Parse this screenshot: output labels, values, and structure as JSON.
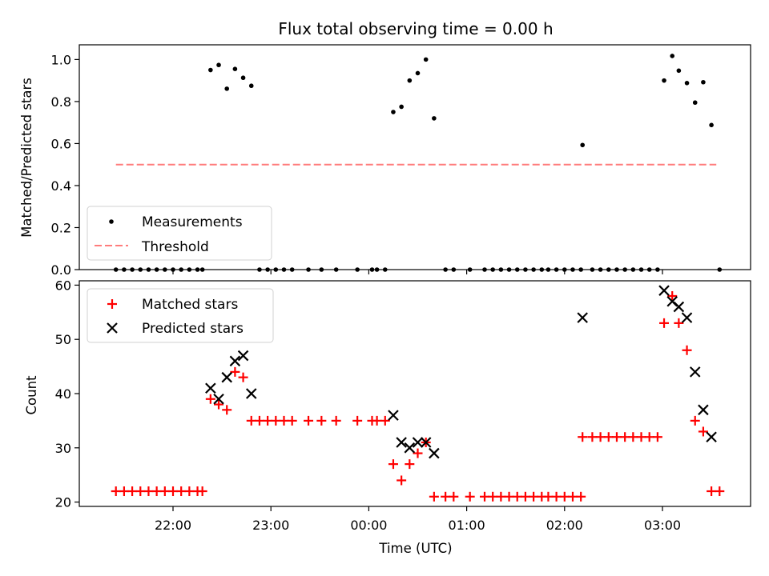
{
  "chart_data": [
    {
      "type": "scatter",
      "title": "Flux total observing time = 0.00 h",
      "ylabel": "Matched/Predicted stars",
      "xlabel": "",
      "ylim": [
        0,
        1.07
      ],
      "yticks": [
        0.0,
        0.2,
        0.4,
        0.6,
        0.8,
        1.0
      ],
      "ytick_labels": [
        "0.0",
        "0.2",
        "0.4",
        "0.6",
        "0.8",
        "1.0"
      ],
      "grid": false,
      "legend": "lower-left",
      "series": [
        {
          "name": "Measurements",
          "marker": "dot",
          "color": "#000000",
          "points": [
            [
              "21:25",
              0
            ],
            [
              "21:30",
              0
            ],
            [
              "21:35",
              0
            ],
            [
              "21:40",
              0
            ],
            [
              "21:45",
              0
            ],
            [
              "21:50",
              0
            ],
            [
              "21:55",
              0
            ],
            [
              "22:00",
              0
            ],
            [
              "22:05",
              0
            ],
            [
              "22:10",
              0
            ],
            [
              "22:15",
              0
            ],
            [
              "22:18",
              0
            ],
            [
              "22:23",
              0.95
            ],
            [
              "22:28",
              0.974
            ],
            [
              "22:33",
              0.861
            ],
            [
              "22:38",
              0.955
            ],
            [
              "22:43",
              0.913
            ],
            [
              "22:48",
              0.875
            ],
            [
              "22:53",
              0
            ],
            [
              "22:58",
              0
            ],
            [
              "23:03",
              0
            ],
            [
              "23:08",
              0
            ],
            [
              "23:13",
              0
            ],
            [
              "23:23",
              0
            ],
            [
              "23:31",
              0
            ],
            [
              "23:40",
              0
            ],
            [
              "23:53",
              0
            ],
            [
              "24:02",
              0
            ],
            [
              "24:05",
              0
            ],
            [
              "24:10",
              0
            ],
            [
              "24:15",
              0.75
            ],
            [
              "24:20",
              0.775
            ],
            [
              "24:25",
              0.9
            ],
            [
              "24:30",
              0.935
            ],
            [
              "24:35",
              1.0
            ],
            [
              "24:40",
              0.72
            ],
            [
              "24:47",
              0
            ],
            [
              "24:52",
              0
            ],
            [
              "25:02",
              0
            ],
            [
              "25:11",
              0
            ],
            [
              "25:16",
              0
            ],
            [
              "25:21",
              0
            ],
            [
              "25:26",
              0
            ],
            [
              "25:31",
              0
            ],
            [
              "25:36",
              0
            ],
            [
              "25:41",
              0
            ],
            [
              "25:46",
              0
            ],
            [
              "25:50",
              0
            ],
            [
              "25:55",
              0
            ],
            [
              "26:00",
              0
            ],
            [
              "26:05",
              0
            ],
            [
              "26:10",
              0
            ],
            [
              "26:11",
              0.593
            ],
            [
              "26:17",
              0
            ],
            [
              "26:22",
              0
            ],
            [
              "26:27",
              0
            ],
            [
              "26:32",
              0
            ],
            [
              "26:37",
              0
            ],
            [
              "26:42",
              0
            ],
            [
              "26:47",
              0
            ],
            [
              "26:52",
              0
            ],
            [
              "26:57",
              0
            ],
            [
              "27:01",
              0.9
            ],
            [
              "27:06",
              1.017
            ],
            [
              "27:10",
              0.947
            ],
            [
              "27:15",
              0.888
            ],
            [
              "27:20",
              0.795
            ],
            [
              "27:25",
              0.892
            ],
            [
              "27:30",
              0.688
            ],
            [
              "27:35",
              0
            ]
          ]
        },
        {
          "name": "Threshold",
          "style": "dashed",
          "color": "#ff6666",
          "x": [
            "21:25",
            "27:33"
          ],
          "values": [
            0.5,
            0.5
          ]
        }
      ]
    },
    {
      "type": "scatter",
      "title": "",
      "ylabel": "Count",
      "xlabel": "Time (UTC)",
      "ylim": [
        19.2,
        60.8
      ],
      "yticks": [
        20,
        30,
        40,
        50,
        60
      ],
      "ytick_labels": [
        "20",
        "30",
        "40",
        "50",
        "60"
      ],
      "xticks": [
        "22:00",
        "23:00",
        "00:00",
        "01:00",
        "02:00",
        "03:00"
      ],
      "grid": false,
      "legend": "upper-left",
      "series": [
        {
          "name": "Matched stars",
          "marker": "plus",
          "color": "#ff0000",
          "points": [
            [
              "21:25",
              22
            ],
            [
              "21:30",
              22
            ],
            [
              "21:35",
              22
            ],
            [
              "21:40",
              22
            ],
            [
              "21:45",
              22
            ],
            [
              "21:50",
              22
            ],
            [
              "21:55",
              22
            ],
            [
              "22:00",
              22
            ],
            [
              "22:05",
              22
            ],
            [
              "22:10",
              22
            ],
            [
              "22:15",
              22
            ],
            [
              "22:18",
              22
            ],
            [
              "22:23",
              39
            ],
            [
              "22:28",
              38
            ],
            [
              "22:33",
              37
            ],
            [
              "22:38",
              44
            ],
            [
              "22:43",
              43
            ],
            [
              "22:48",
              35
            ],
            [
              "22:53",
              35
            ],
            [
              "22:58",
              35
            ],
            [
              "23:03",
              35
            ],
            [
              "23:08",
              35
            ],
            [
              "23:13",
              35
            ],
            [
              "23:23",
              35
            ],
            [
              "23:31",
              35
            ],
            [
              "23:40",
              35
            ],
            [
              "23:53",
              35
            ],
            [
              "24:02",
              35
            ],
            [
              "24:05",
              35
            ],
            [
              "24:10",
              35
            ],
            [
              "24:15",
              27
            ],
            [
              "24:20",
              24
            ],
            [
              "24:25",
              27
            ],
            [
              "24:30",
              29
            ],
            [
              "24:35",
              31
            ],
            [
              "24:40",
              21
            ],
            [
              "24:47",
              21
            ],
            [
              "24:52",
              21
            ],
            [
              "25:02",
              21
            ],
            [
              "25:11",
              21
            ],
            [
              "25:16",
              21
            ],
            [
              "25:21",
              21
            ],
            [
              "25:26",
              21
            ],
            [
              "25:31",
              21
            ],
            [
              "25:36",
              21
            ],
            [
              "25:41",
              21
            ],
            [
              "25:46",
              21
            ],
            [
              "25:50",
              21
            ],
            [
              "25:55",
              21
            ],
            [
              "26:00",
              21
            ],
            [
              "26:05",
              21
            ],
            [
              "26:10",
              21
            ],
            [
              "26:11",
              32
            ],
            [
              "26:17",
              32
            ],
            [
              "26:22",
              32
            ],
            [
              "26:27",
              32
            ],
            [
              "26:32",
              32
            ],
            [
              "26:37",
              32
            ],
            [
              "26:42",
              32
            ],
            [
              "26:47",
              32
            ],
            [
              "26:52",
              32
            ],
            [
              "26:57",
              32
            ],
            [
              "27:01",
              53
            ],
            [
              "27:06",
              58
            ],
            [
              "27:10",
              53
            ],
            [
              "27:15",
              48
            ],
            [
              "27:20",
              35
            ],
            [
              "27:25",
              33
            ],
            [
              "27:30",
              22
            ],
            [
              "27:35",
              22
            ]
          ]
        },
        {
          "name": "Predicted stars",
          "marker": "x",
          "color": "#000000",
          "points": [
            [
              "22:23",
              41
            ],
            [
              "22:28",
              39
            ],
            [
              "22:33",
              43
            ],
            [
              "22:38",
              46
            ],
            [
              "22:43",
              47
            ],
            [
              "22:48",
              40
            ],
            [
              "24:15",
              36
            ],
            [
              "24:20",
              31
            ],
            [
              "24:25",
              30
            ],
            [
              "24:30",
              31
            ],
            [
              "24:35",
              31
            ],
            [
              "24:40",
              29
            ],
            [
              "26:11",
              54
            ],
            [
              "27:01",
              59
            ],
            [
              "27:06",
              57
            ],
            [
              "27:10",
              56
            ],
            [
              "27:15",
              54
            ],
            [
              "27:20",
              44
            ],
            [
              "27:25",
              37
            ],
            [
              "27:30",
              32
            ]
          ]
        }
      ]
    }
  ]
}
